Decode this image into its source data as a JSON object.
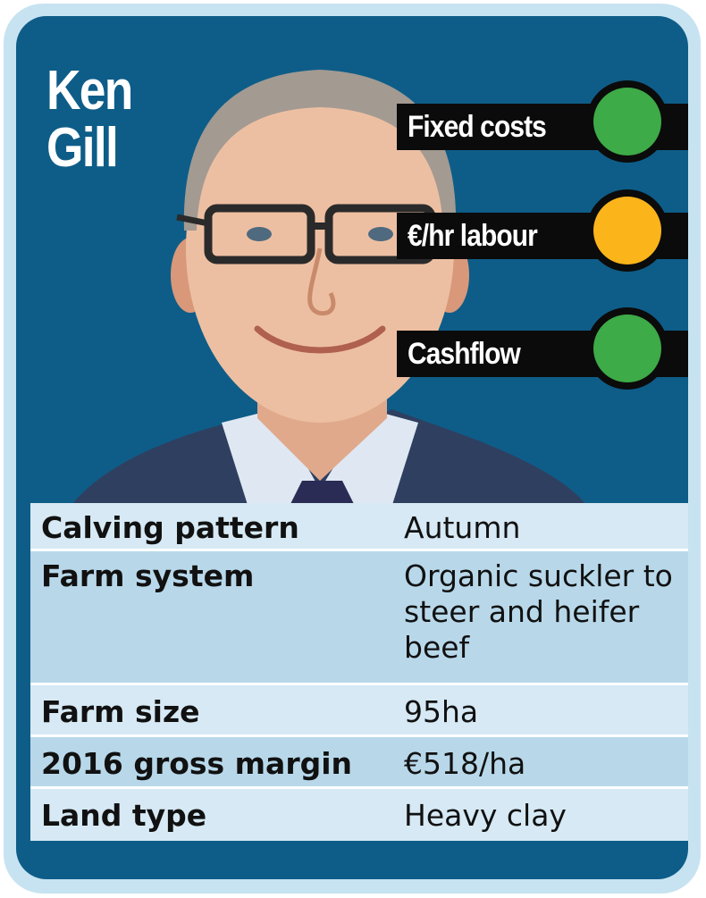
{
  "card": {
    "name_first": "Ken",
    "name_last": "Gill",
    "colors": {
      "border": "#c7e3f1",
      "background": "#0e5d88",
      "green_light": "#3dab47",
      "amber_light": "#fbb41a"
    }
  },
  "indicators": [
    {
      "label": "Fixed costs",
      "status": "green",
      "color": "#3dab47"
    },
    {
      "label": "€/hr labour",
      "status": "amber",
      "color": "#fbb41a"
    },
    {
      "label": "Cashflow",
      "status": "green",
      "color": "#3dab47"
    }
  ],
  "details": [
    {
      "label": "Calving pattern",
      "value": "Autumn"
    },
    {
      "label": "Farm system",
      "value": "Organic suckler to steer and heifer beef"
    },
    {
      "label": "Farm size",
      "value": "95ha"
    },
    {
      "label": "2016 gross margin",
      "value": "€518/ha"
    },
    {
      "label": "Land type",
      "value": "Heavy clay"
    }
  ]
}
